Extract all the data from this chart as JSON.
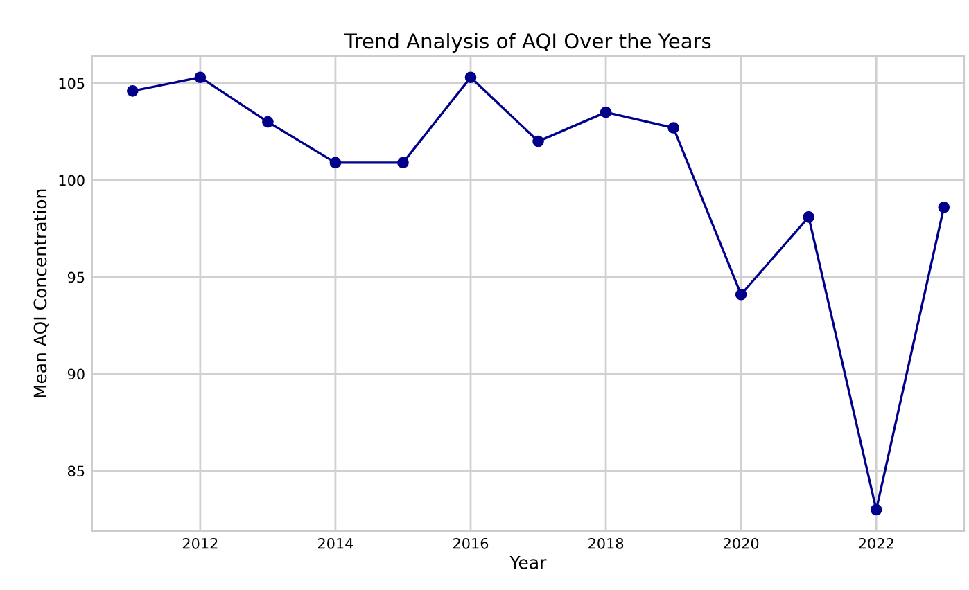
{
  "chart_data": {
    "type": "line",
    "title": "Trend Analysis of AQI Over the Years",
    "xlabel": "Year",
    "ylabel": "Mean AQI Concentration",
    "x": [
      2011,
      2012,
      2013,
      2014,
      2015,
      2016,
      2017,
      2018,
      2019,
      2020,
      2021,
      2022,
      2023
    ],
    "series": [
      {
        "color": "#00008b",
        "values": [
          104.6,
          105.3,
          103.0,
          100.9,
          100.9,
          105.3,
          102.0,
          103.5,
          102.7,
          94.1,
          98.1,
          83.0,
          98.6
        ]
      }
    ],
    "xlim": [
      2010.4,
      2023.3
    ],
    "ylim": [
      81.9,
      106.4
    ],
    "xticks": [
      2012,
      2014,
      2016,
      2018,
      2020,
      2022
    ],
    "yticks": [
      85,
      90,
      95,
      100,
      105
    ],
    "grid": true,
    "marker": "circle",
    "line_style": "solid"
  }
}
